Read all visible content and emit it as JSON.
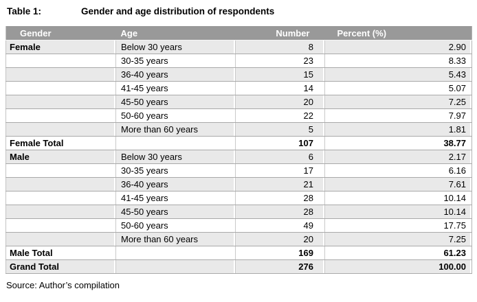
{
  "title": {
    "label": "Table 1:",
    "text": "Gender and age distribution of respondents"
  },
  "table": {
    "columns": [
      "Gender",
      "Age",
      "Number",
      "Percent (%)"
    ],
    "rows": [
      {
        "cells": [
          "Female",
          "Below 30 years",
          "8",
          "2.90"
        ],
        "shaded": true,
        "bold": false
      },
      {
        "cells": [
          "",
          "30-35 years",
          "23",
          "8.33"
        ],
        "shaded": false,
        "bold": false
      },
      {
        "cells": [
          "",
          "36-40 years",
          "15",
          "5.43"
        ],
        "shaded": true,
        "bold": false
      },
      {
        "cells": [
          "",
          "41-45 years",
          "14",
          "5.07"
        ],
        "shaded": false,
        "bold": false
      },
      {
        "cells": [
          "",
          "45-50 years",
          "20",
          "7.25"
        ],
        "shaded": true,
        "bold": false
      },
      {
        "cells": [
          "",
          "50-60 years",
          "22",
          "7.97"
        ],
        "shaded": false,
        "bold": false
      },
      {
        "cells": [
          "",
          "More than 60 years",
          "5",
          "1.81"
        ],
        "shaded": true,
        "bold": false
      },
      {
        "cells": [
          "Female Total",
          "",
          "107",
          "38.77"
        ],
        "shaded": false,
        "bold": true
      },
      {
        "cells": [
          "Male",
          "Below 30 years",
          "6",
          "2.17"
        ],
        "shaded": true,
        "bold": false
      },
      {
        "cells": [
          "",
          "30-35 years",
          "17",
          "6.16"
        ],
        "shaded": false,
        "bold": false
      },
      {
        "cells": [
          "",
          "36-40 years",
          "21",
          "7.61"
        ],
        "shaded": true,
        "bold": false
      },
      {
        "cells": [
          "",
          "41-45 years",
          "28",
          "10.14"
        ],
        "shaded": false,
        "bold": false
      },
      {
        "cells": [
          "",
          "45-50 years",
          "28",
          "10.14"
        ],
        "shaded": true,
        "bold": false
      },
      {
        "cells": [
          "",
          "50-60 years",
          "49",
          "17.75"
        ],
        "shaded": false,
        "bold": false
      },
      {
        "cells": [
          "",
          "More than 60 years",
          "20",
          "7.25"
        ],
        "shaded": true,
        "bold": false
      },
      {
        "cells": [
          "Male Total",
          "",
          "169",
          "61.23"
        ],
        "shaded": false,
        "bold": true
      },
      {
        "cells": [
          "Grand Total",
          "",
          "276",
          "100.00"
        ],
        "shaded": true,
        "bold": true
      }
    ]
  },
  "source": "Source: Author’s compilation",
  "colors": {
    "header_bg": "#999999",
    "header_text": "#ffffff",
    "shaded_row_bg": "#e9e9e9",
    "row_border": "#a9a9a9",
    "column_border": "#c9c9c9"
  }
}
